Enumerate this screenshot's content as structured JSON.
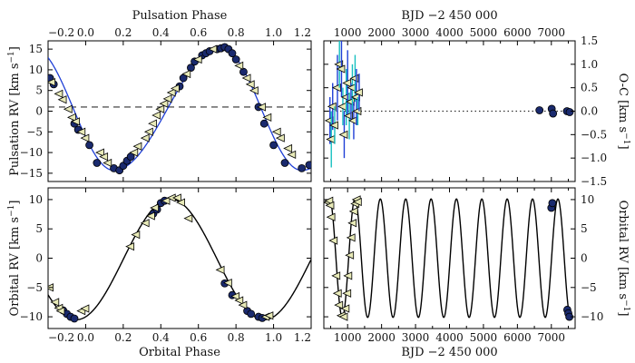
{
  "chart_data": [
    {
      "panel": "top-left",
      "type": "scatter",
      "xlabel_top": "Pulsation Phase",
      "ylabel": "Pulsation RV [km s^-1]",
      "xlim": [
        -0.2,
        1.2
      ],
      "ylim": [
        -17,
        17
      ],
      "xticks": [
        -0.2,
        0.0,
        0.2,
        0.4,
        0.6,
        0.8,
        1.0,
        1.2
      ],
      "xtick_labels": [
        "−0.2",
        "0.0",
        "0.2",
        "0.4",
        "0.6",
        "0.8",
        "1.0",
        "1.2"
      ],
      "yticks": [
        -15,
        -10,
        -5,
        0,
        5,
        10,
        15
      ],
      "ytick_labels": [
        "−15",
        "−10",
        "−5",
        "0",
        "5",
        "10",
        "15"
      ],
      "reference_line": {
        "y": 1.0,
        "style": "dashed"
      },
      "model_curve": {
        "name": "pulsation model",
        "color": "#1f3fd6"
      },
      "series": [
        {
          "name": "circles",
          "marker": "circle",
          "color": "#1a2a6e",
          "x": [
            -0.19,
            -0.17,
            -0.06,
            -0.04,
            0.02,
            0.06,
            0.15,
            0.18,
            0.2,
            0.22,
            0.24,
            0.5,
            0.52,
            0.56,
            0.58,
            0.62,
            0.64,
            0.66,
            0.7,
            0.72,
            0.74,
            0.76,
            0.78,
            0.8,
            0.84,
            0.92,
            0.95,
            1.0,
            1.06,
            1.15,
            1.19
          ],
          "y": [
            8.0,
            6.5,
            -3.0,
            -4.5,
            -8.2,
            -12.5,
            -13.8,
            -14.3,
            -13.2,
            -12.0,
            -11.0,
            6.0,
            8.0,
            10.5,
            12.0,
            13.5,
            14.0,
            14.5,
            15.0,
            15.2,
            15.5,
            15.0,
            14.0,
            12.5,
            9.5,
            1.0,
            -3.0,
            -8.2,
            -12.5,
            -13.8,
            -13.0
          ]
        },
        {
          "name": "triangles",
          "marker": "triangle-left",
          "color": "#e8eab8",
          "x": [
            -0.18,
            -0.14,
            -0.12,
            -0.09,
            -0.07,
            -0.05,
            -0.02,
            0.0,
            0.08,
            0.1,
            0.12,
            0.26,
            0.28,
            0.32,
            0.34,
            0.36,
            0.38,
            0.4,
            0.42,
            0.44,
            0.46,
            0.48,
            0.54,
            0.6,
            0.68,
            0.82,
            0.86,
            0.88,
            0.9,
            0.94,
            0.97,
            1.02,
            1.04,
            1.08,
            1.1
          ],
          "y": [
            7.0,
            4.2,
            2.8,
            0.5,
            -1.5,
            -2.5,
            -5.0,
            -6.5,
            -10.0,
            -11.0,
            -12.5,
            -10.0,
            -8.5,
            -6.5,
            -5.0,
            -3.0,
            -1.0,
            0.5,
            1.8,
            3.0,
            4.5,
            5.5,
            9.0,
            12.5,
            15.0,
            11.0,
            8.0,
            6.5,
            5.0,
            1.0,
            -1.5,
            -5.0,
            -6.5,
            -9.0,
            -10.5
          ]
        }
      ]
    },
    {
      "panel": "top-right",
      "type": "scatter",
      "xlabel_top": "BJD −2 450 000",
      "ylabel": "O-C [km s^-1]",
      "xlim": [
        300,
        7700
      ],
      "ylim": [
        -1.5,
        1.5
      ],
      "xticks": [
        1000,
        2000,
        3000,
        4000,
        5000,
        6000,
        7000
      ],
      "xtick_labels": [
        "1000",
        "2000",
        "3000",
        "4000",
        "5000",
        "6000",
        "7000"
      ],
      "yticks": [
        -1.5,
        -1.0,
        -0.5,
        0.0,
        0.5,
        1.0,
        1.5
      ],
      "ytick_labels": [
        "−1.5",
        "−1.0",
        "−0.5",
        "0.0",
        "0.5",
        "1.0",
        "1.5"
      ],
      "reference_line": {
        "y": 0.0,
        "style": "dotted"
      },
      "series": [
        {
          "name": "triangles_with_errorbars",
          "marker": "triangle-left",
          "color": "#e8eab8",
          "errorbar_colors": [
            "#1f3fd6",
            "#18c0c0"
          ],
          "x": [
            480,
            520,
            560,
            620,
            700,
            760,
            820,
            860,
            900,
            960,
            1000,
            1050,
            1100,
            1140,
            1180,
            1220,
            1260,
            1300,
            1340
          ],
          "y": [
            -0.2,
            -0.6,
            0.1,
            -0.3,
            0.5,
            1.0,
            0.9,
            0.1,
            -0.5,
            0.3,
            0.6,
            -0.1,
            0.2,
            0.5,
            -0.2,
            0.7,
            0.3,
            0.0,
            0.4
          ],
          "err": [
            0.5,
            0.6,
            0.5,
            0.4,
            0.7,
            0.5,
            0.6,
            0.4,
            0.5,
            0.6,
            0.7,
            0.5,
            0.4,
            0.5,
            0.4,
            0.5,
            0.6,
            0.3,
            0.4
          ]
        },
        {
          "name": "circles",
          "marker": "circle",
          "color": "#1a2a6e",
          "x": [
            6650,
            7010,
            7050,
            7460,
            7540
          ],
          "y": [
            0.02,
            0.05,
            -0.05,
            0.0,
            -0.02
          ]
        }
      ]
    },
    {
      "panel": "bottom-left",
      "type": "scatter",
      "xlabel": "Orbital Phase",
      "ylabel": "Orbital RV [km s^-1]",
      "xlim": [
        -0.2,
        1.2
      ],
      "ylim": [
        -12,
        12
      ],
      "xticks": [
        -0.2,
        0.0,
        0.2,
        0.4,
        0.6,
        0.8,
        1.0,
        1.2
      ],
      "xtick_labels": [
        "−0.2",
        "0.0",
        "0.2",
        "0.4",
        "0.6",
        "0.8",
        "1.0",
        "1.2"
      ],
      "yticks": [
        -10,
        -5,
        0,
        5,
        10
      ],
      "ytick_labels": [
        "−10",
        "−5",
        "0",
        "5",
        "10"
      ],
      "model_curve": {
        "name": "orbital model",
        "color": "#000000",
        "amplitude": 10.3,
        "max_phase": 0.45
      },
      "series": [
        {
          "name": "circles",
          "marker": "circle",
          "color": "#1a2a6e",
          "x": [
            -0.12,
            -0.1,
            -0.08,
            -0.06,
            0.36,
            0.38,
            0.4,
            0.42,
            0.74,
            0.78,
            0.86,
            0.88,
            0.92,
            0.94
          ],
          "y": [
            -8.9,
            -9.5,
            -10.0,
            -10.3,
            7.6,
            8.3,
            9.4,
            9.8,
            -4.3,
            -6.3,
            -9.0,
            -9.5,
            -10.0,
            -10.2
          ]
        },
        {
          "name": "triangles",
          "marker": "triangle-left",
          "color": "#e8eab8",
          "x": [
            -0.19,
            -0.16,
            -0.14,
            -0.13,
            -0.02,
            0.0,
            0.24,
            0.27,
            0.32,
            0.35,
            0.37,
            0.43,
            0.46,
            0.49,
            0.51,
            0.55,
            0.72,
            0.76,
            0.8,
            0.82,
            0.84,
            0.96,
            0.98
          ],
          "y": [
            -5.0,
            -7.5,
            -8.5,
            -9.0,
            -9.0,
            -8.6,
            2.0,
            4.0,
            6.0,
            7.2,
            8.6,
            9.8,
            10.3,
            10.3,
            9.5,
            6.8,
            -2.0,
            -4.2,
            -6.5,
            -7.2,
            -8.0,
            -10.0,
            -9.8
          ]
        }
      ]
    },
    {
      "panel": "bottom-right",
      "type": "scatter",
      "xlabel": "BJD −2 450 000",
      "ylabel": "Orbital RV [km s^-1]",
      "xlim": [
        300,
        7700
      ],
      "ylim": [
        -12,
        12
      ],
      "xticks": [
        1000,
        2000,
        3000,
        4000,
        5000,
        6000,
        7000
      ],
      "xtick_labels": [
        "1000",
        "2000",
        "3000",
        "4000",
        "5000",
        "6000",
        "7000"
      ],
      "yticks": [
        -10,
        -5,
        0,
        5,
        10
      ],
      "ytick_labels": [
        "−10",
        "−5",
        "0",
        "5",
        "10"
      ],
      "model_curve": {
        "name": "orbital model",
        "color": "#000000",
        "amplitude": 10.1,
        "period_days": 747,
        "peak_bjd": 470
      },
      "series": [
        {
          "name": "circles",
          "marker": "circle",
          "color": "#1a2a6e",
          "x": [
            7000,
            7030,
            7470,
            7500,
            7530
          ],
          "y": [
            8.6,
            9.4,
            -8.8,
            -9.4,
            -10.0
          ]
        },
        {
          "name": "triangles",
          "marker": "triangle-left",
          "color": "#e8eab8",
          "x": [
            440,
            470,
            500,
            530,
            600,
            680,
            720,
            760,
            830,
            900,
            950,
            1000,
            1030,
            1080,
            1120,
            1160,
            1200,
            1240,
            1280,
            1310
          ],
          "y": [
            9.5,
            9.8,
            9.0,
            7.0,
            3.0,
            -3.0,
            -6.0,
            -8.0,
            -9.8,
            -10.0,
            -8.6,
            -6.0,
            -3.0,
            0.5,
            3.5,
            6.0,
            8.0,
            9.3,
            10.0,
            9.6
          ]
        }
      ]
    }
  ]
}
